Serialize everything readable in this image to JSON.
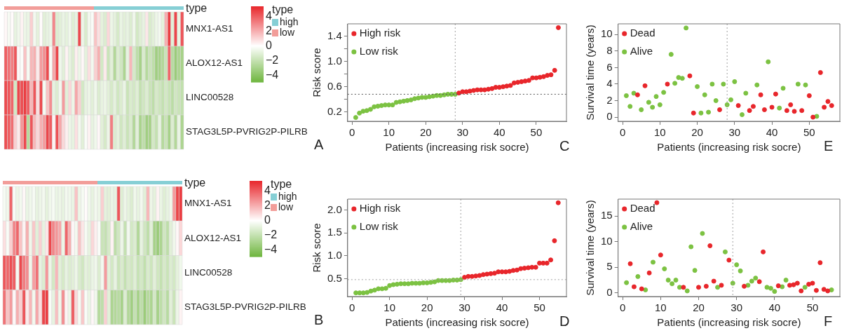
{
  "chart_data": [
    {
      "type": "heatmap",
      "categories": [
        null,
        null,
        null,
        null,
        null,
        null,
        null,
        null,
        null,
        null,
        null,
        null,
        null,
        null,
        null,
        null,
        null,
        null,
        null,
        null,
        null,
        null,
        null,
        null,
        null,
        null,
        null,
        null,
        null,
        null,
        null,
        null,
        null,
        null,
        null,
        null,
        null,
        null,
        null,
        null,
        null,
        null,
        null,
        null,
        null,
        null,
        null,
        null,
        null,
        null,
        null,
        null,
        null,
        null,
        null,
        null
      ],
      "y_categories": [
        "MNX1-AS1",
        "ALOX12-AS1",
        "LINC00528",
        "STAG3L5P-PVRIG2P-PILRB"
      ],
      "cells": [
        [
          0.2,
          -0.3,
          0.1,
          -0.8,
          -0.5,
          0.3,
          -0.6,
          -0.7,
          1.2,
          -0.4,
          -0.9,
          0.1,
          -1.0,
          -0.8,
          -0.6,
          3.0,
          -1.2,
          -1.0,
          -0.7,
          -0.9,
          -0.5,
          -1.1,
          -0.8,
          4.5,
          -0.6,
          -1.3,
          -0.4,
          -0.2,
          1.5,
          0.8,
          -0.9,
          -1.2,
          1.0,
          -0.6,
          -0.9,
          -1.4,
          -0.7,
          -1.0,
          -0.8,
          -1.2,
          -0.5,
          -1.5,
          -1.1,
          -0.8,
          0.6,
          -1.3,
          -1.0,
          -0.6,
          -0.4,
          -0.9,
          2.0,
          4.8,
          -1.0,
          4.6,
          -0.7,
          4.2
        ],
        [
          4.0,
          3.5,
          3.2,
          4.2,
          0.2,
          -0.1,
          1.5,
          -0.3,
          1.8,
          2.0,
          0.5,
          2.5,
          2.8,
          4.5,
          -0.2,
          2.2,
          4.6,
          -0.5,
          -1.0,
          0.3,
          -0.8,
          -1.2,
          0.4,
          -0.6,
          0.2,
          -0.9,
          0.8,
          -0.4,
          1.2,
          2.0,
          -1.5,
          0.5,
          -1.8,
          -1.0,
          -2.6,
          -1.2,
          -1.6,
          -2.8,
          -0.8,
          1.8,
          -1.4,
          -2.2,
          -3.0,
          -1.3,
          -2.5,
          -1.8,
          -2.2,
          -3.2,
          -3.0,
          -2.6,
          -1.8,
          3.8,
          -2.4,
          -3.4,
          -2.8,
          -3.0
        ],
        [
          4.5,
          4.2,
          3.8,
          -1.5,
          4.6,
          4.4,
          4.8,
          4.0,
          1.8,
          4.2,
          0.8,
          4.5,
          -0.3,
          1.5,
          2.8,
          -0.8,
          -1.2,
          -0.4,
          2.5,
          -1.0,
          1.0,
          -0.6,
          2.2,
          1.2,
          -1.5,
          -0.8,
          -0.6,
          -1.0,
          -0.5,
          -1.2,
          -0.8,
          -0.6,
          -1.0,
          -1.4,
          -0.9,
          -1.6,
          -1.2,
          -0.7,
          -1.8,
          -1.3,
          -1.5,
          -1.1,
          -2.0,
          -1.6,
          -1.2,
          -1.8,
          -2.2,
          -1.4,
          -1.7,
          -2.0,
          -1.5,
          -1.9,
          -2.3,
          -1.6,
          -1.8,
          -2.1
        ],
        [
          4.4,
          4.0,
          3.6,
          1.2,
          0.5,
          2.6,
          4.5,
          -2.5,
          4.2,
          1.8,
          1.0,
          2.0,
          2.5,
          4.6,
          4.0,
          0.3,
          4.3,
          2.2,
          1.0,
          0.4,
          -0.6,
          -0.8,
          0.8,
          -0.4,
          -1.0,
          -0.2,
          0.3,
          -0.8,
          -0.5,
          0.2,
          -1.0,
          -1.4,
          -0.6,
          3.2,
          -1.2,
          -0.9,
          -1.6,
          -1.1,
          -1.8,
          -1.3,
          -2.6,
          -1.0,
          -2.9,
          -2.2,
          -3.2,
          -3.0,
          -1.5,
          -2.0,
          -0.8,
          -2.5,
          -1.8,
          -3.0,
          -1.2,
          -2.6,
          -0.7,
          -2.8
        ]
      ],
      "clim": [
        -4.9,
        5.4
      ],
      "cticks": [
        4,
        2,
        0,
        -2,
        -4
      ],
      "legend_title": "type",
      "legend": "right",
      "series": [
        {
          "name": "low",
          "color": "#f29d99",
          "values": [
            null,
            null,
            null,
            null,
            null,
            null,
            null,
            null,
            null,
            null,
            null,
            null,
            null,
            null,
            null,
            null,
            null,
            null,
            null,
            null,
            null,
            null,
            null,
            null,
            null,
            null,
            null,
            null,
            null,
            null,
            null,
            null,
            null,
            null,
            null,
            null,
            null,
            null,
            null,
            null,
            null,
            null,
            null,
            null,
            null,
            null,
            null,
            null,
            null,
            null,
            null,
            null,
            null,
            null,
            null,
            null
          ]
        },
        {
          "name": "high",
          "color": "#86cfd5",
          "values": [
            null,
            null,
            null,
            null,
            null,
            null,
            null,
            null,
            null,
            null,
            null,
            null,
            null,
            null,
            null,
            null,
            null,
            null,
            null,
            null,
            null,
            null,
            null,
            null,
            null,
            null,
            null,
            null,
            null,
            null,
            null,
            null,
            null,
            null,
            null,
            null,
            null,
            null,
            null,
            null,
            null,
            null,
            null,
            null,
            null,
            null,
            null,
            null,
            null,
            null,
            null,
            null,
            null,
            null,
            null,
            null
          ]
        }
      ],
      "annotations": [
        "A"
      ]
    },
    {
      "type": "scatter",
      "xlabel": "Patients (increasing risk socre)",
      "ylabel": "Risk score",
      "xlim": [
        -1.2,
        58.2
      ],
      "xticks": [
        0,
        10,
        20,
        30,
        40,
        50
      ],
      "ylim": [
        0.05,
        1.6
      ],
      "yticks": [
        0.2,
        {
          "value": 0.4,
          "label": null
        },
        0.6,
        {
          "value": 0.8,
          "label": null
        },
        {
          "value": 1,
          "label": "1.0"
        },
        {
          "value": 1.2,
          "label": null
        },
        1.4
      ],
      "legend": "top left",
      "marker": "circle",
      "series": [
        {
          "name": "High risk",
          "color": "#e8262b",
          "x": [
            29,
            30,
            31,
            32,
            33,
            34,
            35,
            36,
            37,
            38,
            39,
            40,
            41,
            42,
            43,
            44,
            45,
            46,
            47,
            48,
            49,
            50,
            51,
            52,
            53,
            54,
            55,
            56
          ],
          "values": [
            0.5,
            0.52,
            0.52,
            0.53,
            0.54,
            0.55,
            0.55,
            0.55,
            0.56,
            0.57,
            0.59,
            0.59,
            0.6,
            0.61,
            0.62,
            0.66,
            0.67,
            0.68,
            0.69,
            0.7,
            0.74,
            0.74,
            0.75,
            0.76,
            0.78,
            0.79,
            0.86,
            1.54
          ]
        },
        {
          "name": "Low risk",
          "color": "#7cc242",
          "x": [
            1,
            2,
            3,
            4,
            5,
            6,
            7,
            8,
            9,
            10,
            11,
            12,
            13,
            14,
            15,
            16,
            17,
            18,
            19,
            20,
            21,
            22,
            23,
            24,
            25,
            26,
            27,
            28
          ],
          "values": [
            0.11,
            0.18,
            0.21,
            0.22,
            0.24,
            0.28,
            0.29,
            0.3,
            0.31,
            0.31,
            0.31,
            0.35,
            0.36,
            0.37,
            0.38,
            0.39,
            0.41,
            0.42,
            0.43,
            0.43,
            0.44,
            0.45,
            0.46,
            0.46,
            0.47,
            0.48,
            0.48,
            0.48
          ]
        }
      ],
      "ref_lines": [
        {
          "axis": "x",
          "value": 28,
          "color": "#a0a0a0",
          "line_style": "dotted"
        },
        {
          "axis": "y",
          "value": 0.48,
          "color": "#555555",
          "line_style": "dotted"
        }
      ],
      "annotations": [
        "C"
      ]
    },
    {
      "type": "scatter",
      "xlabel": "Patients (increasing risk socre)",
      "ylabel": "Survival time (years)",
      "xlim": [
        -1.2,
        58.2
      ],
      "xticks": [
        0,
        10,
        20,
        30,
        40,
        50
      ],
      "ylim": [
        -0.5,
        11.3
      ],
      "yticks": [
        0,
        2,
        4,
        6,
        8,
        10
      ],
      "legend": "top left",
      "marker": "circle",
      "series": [
        {
          "name": "Dead",
          "color": "#e8262b",
          "x": [
            4,
            6,
            12,
            18,
            19,
            26,
            31,
            34,
            35,
            37,
            38,
            40,
            41,
            44,
            45,
            46,
            48,
            50,
            51,
            53,
            54,
            55,
            56
          ],
          "values": [
            2.7,
            3.8,
            4.0,
            5.0,
            0.5,
            0.9,
            1.4,
            0.8,
            1.3,
            2.7,
            0.9,
            1.2,
            2.8,
            0.8,
            1.5,
            0.7,
            0.8,
            2.6,
            0.0,
            5.4,
            1.2,
            1.9,
            1.4
          ]
        },
        {
          "name": "Alive",
          "color": "#7cc242",
          "x": [
            1,
            2,
            3,
            5,
            7,
            8,
            9,
            10,
            11,
            13,
            14,
            15,
            16,
            17,
            20,
            21,
            22,
            23,
            24,
            25,
            27,
            28,
            29,
            30,
            32,
            33,
            36,
            39,
            42,
            43,
            47,
            49,
            52
          ],
          "values": [
            2.6,
            1.3,
            2.9,
            0.9,
            1.8,
            1.2,
            2.5,
            1.5,
            3.0,
            7.6,
            4.1,
            4.8,
            4.7,
            10.8,
            3.7,
            0.5,
            2.7,
            0.6,
            4.0,
            2.0,
            4.0,
            1.5,
            2.1,
            4.3,
            0.3,
            2.9,
            3.9,
            6.7,
            1.1,
            3.5,
            4.0,
            3.9,
            0.1
          ]
        }
      ],
      "ref_lines": [
        {
          "axis": "x",
          "value": 28,
          "color": "#a0a0a0",
          "line_style": "dotted"
        }
      ],
      "annotations": [
        "E"
      ]
    },
    {
      "type": "heatmap",
      "categories": [
        null,
        null,
        null,
        null,
        null,
        null,
        null,
        null,
        null,
        null,
        null,
        null,
        null,
        null,
        null,
        null,
        null,
        null,
        null,
        null,
        null,
        null,
        null,
        null,
        null,
        null,
        null,
        null,
        null,
        null,
        null,
        null,
        null,
        null,
        null,
        null,
        null,
        null,
        null,
        null,
        null,
        null,
        null,
        null,
        null,
        null,
        null,
        null,
        null,
        null,
        null,
        null,
        null,
        null,
        null
      ],
      "y_categories": [
        "MNX1-AS1",
        "ALOX12-AS1",
        "LINC00528",
        "STAG3L5P-PVRIG2P-PILRB"
      ],
      "cells": [
        [
          -0.3,
          -0.5,
          3.8,
          -0.2,
          -0.6,
          -0.4,
          0.2,
          -0.7,
          -0.5,
          -0.3,
          -0.8,
          -0.6,
          -0.4,
          -0.9,
          -0.5,
          -0.3,
          -0.7,
          -0.6,
          -0.8,
          -0.4,
          -0.5,
          -0.7,
          1.5,
          -0.6,
          -0.3,
          0.1,
          -0.5,
          -0.8,
          -0.4,
          -0.6,
          1.2,
          -0.9,
          -1.0,
          -0.7,
          -0.8,
          4.2,
          -1.1,
          -0.6,
          -0.9,
          -1.2,
          -0.5,
          -0.8,
          -0.4,
          -1.0,
          1.8,
          -0.6,
          -0.9,
          0.3,
          -0.7,
          -1.1,
          -0.8,
          -0.5,
          2.5,
          4.6,
          4.8
        ],
        [
          0.8,
          -0.2,
          1.2,
          3.0,
          3.8,
          1.5,
          0.3,
          2.0,
          -0.5,
          1.4,
          -1.0,
          1.2,
          -0.8,
          0.6,
          4.5,
          3.0,
          2.6,
          2.2,
          -0.6,
          3.8,
          2.0,
          0.2,
          -0.4,
          1.5,
          0.6,
          -0.3,
          -0.8,
          1.0,
          0.4,
          -0.2,
          -1.8,
          -2.0,
          -1.4,
          0.3,
          -2.2,
          -1.6,
          -0.6,
          -2.0,
          -0.4,
          -1.5,
          -1.2,
          -2.6,
          -0.8,
          -1.6,
          -2.2,
          -1.0,
          -3.0,
          -3.4,
          -2.8,
          -1.6,
          -2.2,
          -1.0,
          -0.5,
          0.2,
          1.0
        ],
        [
          4.2,
          3.8,
          4.4,
          4.0,
          -0.3,
          4.5,
          3.2,
          2.8,
          -0.5,
          2.4,
          3.5,
          -0.8,
          -1.2,
          2.6,
          -0.6,
          -1.5,
          1.8,
          -1.0,
          -1.4,
          -0.8,
          -1.2,
          -1.0,
          -0.6,
          -1.3,
          -1.6,
          -0.9,
          -1.1,
          -0.7,
          -0.5,
          -1.2,
          -0.4,
          2.5,
          -1.0,
          -1.5,
          -0.8,
          -1.8,
          -1.3,
          -2.0,
          -1.4,
          -1.6,
          -1.1,
          -1.9,
          -1.5,
          -2.1,
          -1.3,
          -1.7,
          -1.0,
          -1.6,
          -2.0,
          -1.4,
          -1.8,
          -1.2,
          -1.5,
          -0.9,
          -0.5
        ],
        [
          3.5,
          1.5,
          2.5,
          0.2,
          2.0,
          1.2,
          4.2,
          0.5,
          1.8,
          -0.4,
          2.2,
          0.8,
          4.6,
          4.8,
          -0.2,
          -0.8,
          1.6,
          -0.5,
          2.8,
          0.3,
          -0.6,
          4.0,
          1.0,
          -0.3,
          1.4,
          -0.2,
          -0.7,
          0.2,
          -0.5,
          -2.5,
          -2.2,
          1.2,
          -1.0,
          -2.8,
          -2.6,
          -2.4,
          -3.0,
          -1.2,
          -2.6,
          -3.2,
          -2.0,
          -3.0,
          -2.2,
          -3.4,
          -2.5,
          -2.8,
          -1.5,
          -3.0,
          -2.2,
          -1.6,
          -2.4,
          -1.0,
          -1.8,
          -0.6,
          0.3
        ]
      ],
      "clim": [
        -4.9,
        5.4
      ],
      "cticks": [
        4,
        2,
        0,
        -2,
        -4
      ],
      "legend_title": "type",
      "legend": "right",
      "series": [
        {
          "name": "low",
          "color": "#f29d99",
          "values": [
            null,
            null,
            null,
            null,
            null,
            null,
            null,
            null,
            null,
            null,
            null,
            null,
            null,
            null,
            null,
            null,
            null,
            null,
            null,
            null,
            null,
            null,
            null,
            null,
            null,
            null,
            null,
            null,
            null,
            null,
            null,
            null,
            null,
            null,
            null,
            null,
            null,
            null,
            null,
            null,
            null,
            null,
            null,
            null,
            null,
            null,
            null,
            null,
            null,
            null,
            null,
            null,
            null,
            null,
            null
          ]
        },
        {
          "name": "high",
          "color": "#86cfd5",
          "values": [
            null,
            null,
            null,
            null,
            null,
            null,
            null,
            null,
            null,
            null,
            null,
            null,
            null,
            null,
            null,
            null,
            null,
            null,
            null,
            null,
            null,
            null,
            null,
            null,
            null,
            null,
            null,
            null,
            null,
            null,
            null,
            null,
            null,
            null,
            null,
            null,
            null,
            null,
            null,
            null,
            null,
            null,
            null,
            null,
            null,
            null,
            null,
            null,
            null,
            null,
            null,
            null,
            null,
            null,
            null
          ]
        }
      ],
      "annotations": [
        "B"
      ]
    },
    {
      "type": "scatter",
      "xlabel": "Patients (increasing risk socre)",
      "ylabel": "Risk score",
      "xlim": [
        -1.2,
        57.2
      ],
      "xticks": [
        0,
        10,
        20,
        30,
        40,
        50
      ],
      "ylim": [
        0.11,
        2.24
      ],
      "yticks": [
        0.5,
        {
          "value": 1,
          "label": "1.0"
        },
        1.5,
        {
          "value": 2,
          "label": "2.0"
        }
      ],
      "legend": "top left",
      "marker": "circle",
      "series": [
        {
          "name": "High risk",
          "color": "#e8262b",
          "x": [
            30,
            31,
            32,
            33,
            34,
            35,
            36,
            37,
            38,
            39,
            40,
            41,
            42,
            43,
            44,
            45,
            46,
            47,
            48,
            49,
            50,
            51,
            52,
            53,
            54,
            55
          ],
          "values": [
            0.53,
            0.55,
            0.55,
            0.56,
            0.57,
            0.59,
            0.6,
            0.61,
            0.62,
            0.65,
            0.65,
            0.65,
            0.66,
            0.68,
            0.69,
            0.72,
            0.73,
            0.74,
            0.75,
            0.75,
            0.84,
            0.84,
            0.84,
            0.91,
            1.33,
            2.16
          ]
        },
        {
          "name": "Low risk",
          "color": "#7cc242",
          "x": [
            1,
            2,
            3,
            4,
            5,
            6,
            7,
            8,
            9,
            10,
            11,
            12,
            13,
            14,
            15,
            16,
            17,
            18,
            19,
            20,
            21,
            22,
            23,
            24,
            25,
            26,
            27,
            28,
            29
          ],
          "values": [
            0.19,
            0.19,
            0.19,
            0.2,
            0.23,
            0.25,
            0.28,
            0.28,
            0.29,
            0.35,
            0.37,
            0.38,
            0.39,
            0.39,
            0.39,
            0.4,
            0.4,
            0.4,
            0.41,
            0.41,
            0.42,
            0.43,
            0.46,
            0.46,
            0.46,
            0.46,
            0.47,
            0.47,
            0.48
          ]
        }
      ],
      "ref_lines": [
        {
          "axis": "x",
          "value": 29,
          "color": "#a0a0a0",
          "line_style": "dotted"
        },
        {
          "axis": "y",
          "value": 0.48,
          "color": "#a0a0a0",
          "line_style": "dotted"
        }
      ],
      "annotations": [
        "D"
      ]
    },
    {
      "type": "scatter",
      "xlabel": "Patients (increasing risk socre)",
      "ylabel": "Survival time (years)",
      "xlim": [
        -1.2,
        57.2
      ],
      "xticks": [
        0,
        10,
        20,
        30,
        40,
        50
      ],
      "ylim": [
        -0.7,
        18.3
      ],
      "yticks": [
        0,
        5,
        10,
        15
      ],
      "legend": "top left",
      "marker": "circle",
      "series": [
        {
          "name": "Dead",
          "color": "#e8262b",
          "x": [
            2,
            3,
            5,
            7,
            9,
            10,
            16,
            20,
            22,
            23,
            24,
            26,
            28,
            32,
            36,
            37,
            41,
            44,
            45,
            46,
            47,
            49,
            50,
            51,
            52,
            53,
            54
          ],
          "values": [
            5.7,
            1.2,
            0.8,
            3.9,
            17.6,
            7.4,
            1.1,
            1.1,
            1.3,
            9.2,
            2.3,
            1.5,
            6.4,
            1.3,
            2.2,
            8.0,
            1.4,
            1.5,
            1.6,
            1.9,
            0.4,
            1.7,
            1.9,
            0.5,
            5.9,
            0.7,
            0.4
          ]
        },
        {
          "name": "Alive",
          "color": "#7cc242",
          "x": [
            1,
            4,
            6,
            8,
            11,
            12,
            13,
            14,
            15,
            17,
            18,
            19,
            21,
            25,
            27,
            29,
            30,
            31,
            33,
            34,
            35,
            38,
            39,
            40,
            42,
            43,
            48,
            55
          ],
          "values": [
            2.0,
            3.2,
            0.6,
            6.0,
            4.7,
            2.5,
            1.8,
            2.5,
            1.1,
            0.4,
            9.0,
            4.4,
            11.6,
            1.1,
            8.0,
            1.9,
            5.5,
            4.3,
            1.5,
            2.3,
            2.9,
            1.1,
            0.9,
            0.3,
            1.2,
            2.5,
            1.1,
            0.6
          ]
        }
      ],
      "ref_lines": [
        {
          "axis": "x",
          "value": 29,
          "color": "#a0a0a0",
          "line_style": "dotted"
        }
      ],
      "annotations": [
        "F"
      ]
    }
  ]
}
